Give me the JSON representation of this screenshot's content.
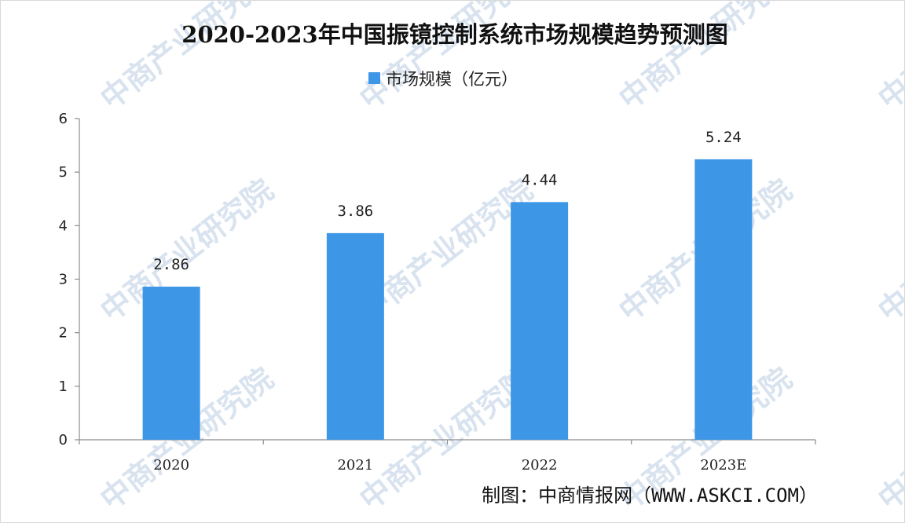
{
  "chart_data": {
    "type": "bar",
    "title": "2020-2023年中国振镜控制系统市场规模趋势预测图",
    "categories": [
      "2020",
      "2021",
      "2022",
      "2023E"
    ],
    "series": [
      {
        "name": "市场规模（亿元）",
        "values": [
          2.86,
          3.86,
          4.44,
          5.24
        ],
        "color": "#3d96e6"
      }
    ],
    "data_labels": [
      "2.86",
      "3.86",
      "4.44",
      "5.24"
    ],
    "ylim": [
      0,
      6
    ],
    "yticks": [
      "0",
      "1",
      "2",
      "3",
      "4",
      "5",
      "6"
    ],
    "xlabel": "",
    "ylabel": "",
    "grid": false,
    "legend_position": "top-center"
  },
  "source": "制图：中商情报网（WWW.ASKCI.COM）",
  "watermark": "中商产业研究院",
  "colors": {
    "bar": "#3d96e6",
    "axis": "#8c8c8c",
    "watermark": "#b9cde3"
  }
}
